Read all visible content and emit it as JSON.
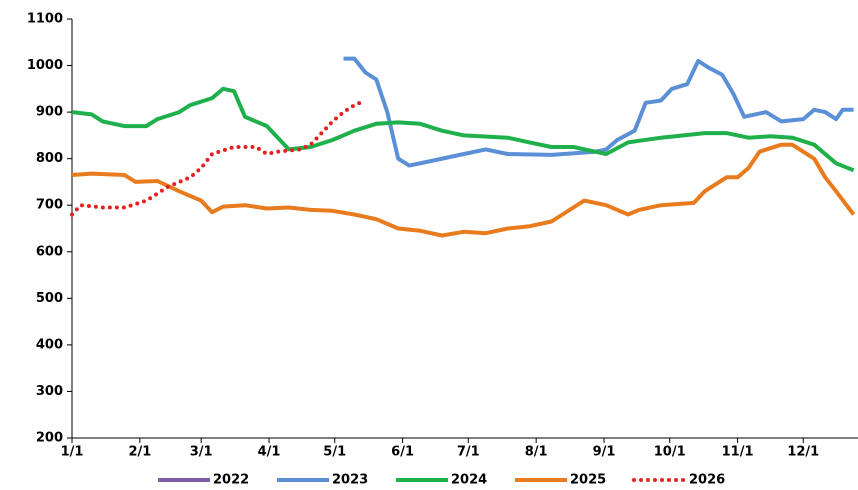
{
  "chart_data": {
    "type": "line",
    "xlim": [
      1,
      360
    ],
    "xticks": [
      {
        "value": 1,
        "label": "1/1"
      },
      {
        "value": 32,
        "label": "2/1"
      },
      {
        "value": 60,
        "label": "3/1"
      },
      {
        "value": 91,
        "label": "4/1"
      },
      {
        "value": 121,
        "label": "5/1"
      },
      {
        "value": 152,
        "label": "6/1"
      },
      {
        "value": 182,
        "label": "7/1"
      },
      {
        "value": 213,
        "label": "8/1"
      },
      {
        "value": 244,
        "label": "9/1"
      },
      {
        "value": 274,
        "label": "10/1"
      },
      {
        "value": 305,
        "label": "11/1"
      },
      {
        "value": 335,
        "label": "12/1"
      }
    ],
    "ylim": [
      200,
      1100
    ],
    "yticks": [
      200,
      300,
      400,
      500,
      600,
      700,
      800,
      900,
      1000,
      1100
    ],
    "series": [
      {
        "name": "2022",
        "color": "#7e5ea0",
        "style": "solid",
        "x": [],
        "values": []
      },
      {
        "name": "2023",
        "color": "#5b8fd6",
        "style": "solid",
        "x": [
          125,
          130,
          135,
          140,
          145,
          150,
          155,
          165,
          180,
          190,
          200,
          220,
          240,
          245,
          250,
          258,
          263,
          270,
          275,
          282,
          287,
          292,
          298,
          303,
          308,
          318,
          325,
          335,
          340,
          345,
          350,
          353,
          358
        ],
        "values": [
          1015,
          1015,
          985,
          970,
          900,
          800,
          785,
          795,
          810,
          820,
          810,
          808,
          815,
          820,
          840,
          860,
          920,
          925,
          950,
          960,
          1010,
          995,
          980,
          940,
          890,
          900,
          880,
          885,
          905,
          900,
          885,
          905,
          905
        ]
      },
      {
        "name": "2024",
        "color": "#1fb04b",
        "style": "solid",
        "x": [
          1,
          10,
          15,
          25,
          35,
          40,
          50,
          55,
          65,
          70,
          75,
          80,
          90,
          95,
          100,
          110,
          120,
          130,
          140,
          150,
          160,
          170,
          180,
          200,
          210,
          220,
          230,
          240,
          245,
          255,
          270,
          290,
          300,
          310,
          320,
          330,
          340,
          350,
          358
        ],
        "values": [
          900,
          895,
          880,
          870,
          870,
          885,
          900,
          915,
          930,
          950,
          945,
          890,
          870,
          845,
          820,
          825,
          840,
          860,
          875,
          878,
          875,
          860,
          850,
          845,
          835,
          825,
          825,
          815,
          810,
          835,
          845,
          855,
          855,
          845,
          848,
          845,
          830,
          790,
          775
        ]
      },
      {
        "name": "2025",
        "color": "#e87b1e",
        "style": "solid",
        "x": [
          1,
          10,
          25,
          30,
          40,
          50,
          60,
          65,
          70,
          80,
          90,
          100,
          110,
          120,
          130,
          140,
          150,
          160,
          170,
          180,
          190,
          200,
          210,
          220,
          230,
          235,
          245,
          255,
          260,
          270,
          285,
          290,
          300,
          305,
          310,
          315,
          325,
          330,
          340,
          345,
          350,
          358
        ],
        "values": [
          765,
          768,
          765,
          750,
          752,
          730,
          710,
          685,
          697,
          700,
          693,
          695,
          690,
          688,
          680,
          670,
          650,
          645,
          635,
          643,
          640,
          650,
          655,
          665,
          695,
          710,
          700,
          680,
          690,
          700,
          705,
          730,
          760,
          760,
          780,
          815,
          830,
          830,
          800,
          760,
          730,
          680
        ]
      },
      {
        "name": "2026",
        "color": "#e52020",
        "style": "dotted",
        "x": [
          1,
          5,
          15,
          25,
          35,
          45,
          55,
          60,
          65,
          75,
          85,
          90,
          95,
          105,
          110,
          115,
          120,
          125,
          130,
          135
        ],
        "values": [
          680,
          700,
          695,
          695,
          710,
          740,
          760,
          780,
          810,
          825,
          825,
          810,
          815,
          820,
          830,
          855,
          880,
          900,
          915,
          925
        ]
      }
    ]
  }
}
